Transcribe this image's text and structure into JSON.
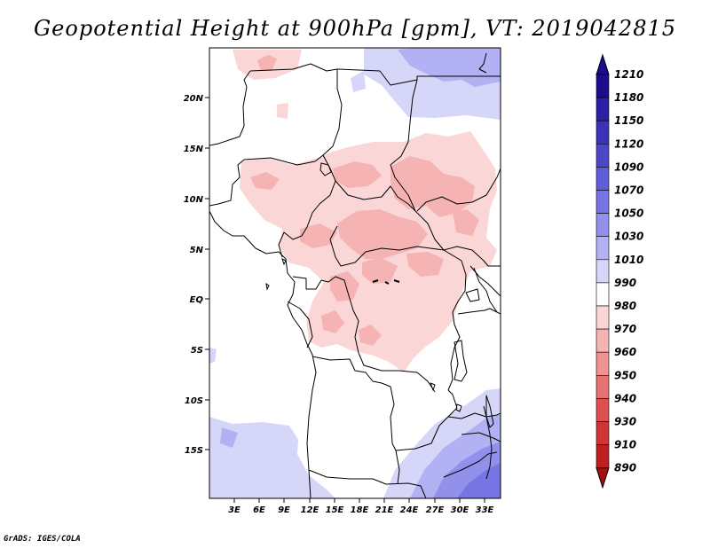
{
  "title": "Geopotential Height at 900hPa [gpm], VT: 2019042815",
  "credit": "GrADS: IGES/COLA",
  "colors": {
    "frame": "#000000",
    "background": "#ffffff"
  },
  "map": {
    "lat_labels": [
      "20N",
      "15N",
      "10N",
      "5N",
      "EQ",
      "5S",
      "10S",
      "15S"
    ],
    "lon_labels": [
      "3E",
      "6E",
      "9E",
      "12E",
      "15E",
      "18E",
      "21E",
      "24E",
      "27E",
      "30E",
      "33E"
    ]
  },
  "colorbar": {
    "labels": [
      "1210",
      "1180",
      "1150",
      "1120",
      "1090",
      "1070",
      "1050",
      "1030",
      "1010",
      "990",
      "980",
      "970",
      "960",
      "950",
      "940",
      "930",
      "910",
      "890"
    ],
    "colors": [
      "#1b0d8c",
      "#2b1fa3",
      "#3a33b8",
      "#4b47c9",
      "#5f5dd8",
      "#7675e3",
      "#9191ec",
      "#b1b1f3",
      "#d6d6f9",
      "#ffffff",
      "#fbd6d6",
      "#f5b3b3",
      "#ee9292",
      "#e57171",
      "#dc5050",
      "#cf3535",
      "#bd2020",
      "#a50f0f"
    ]
  }
}
